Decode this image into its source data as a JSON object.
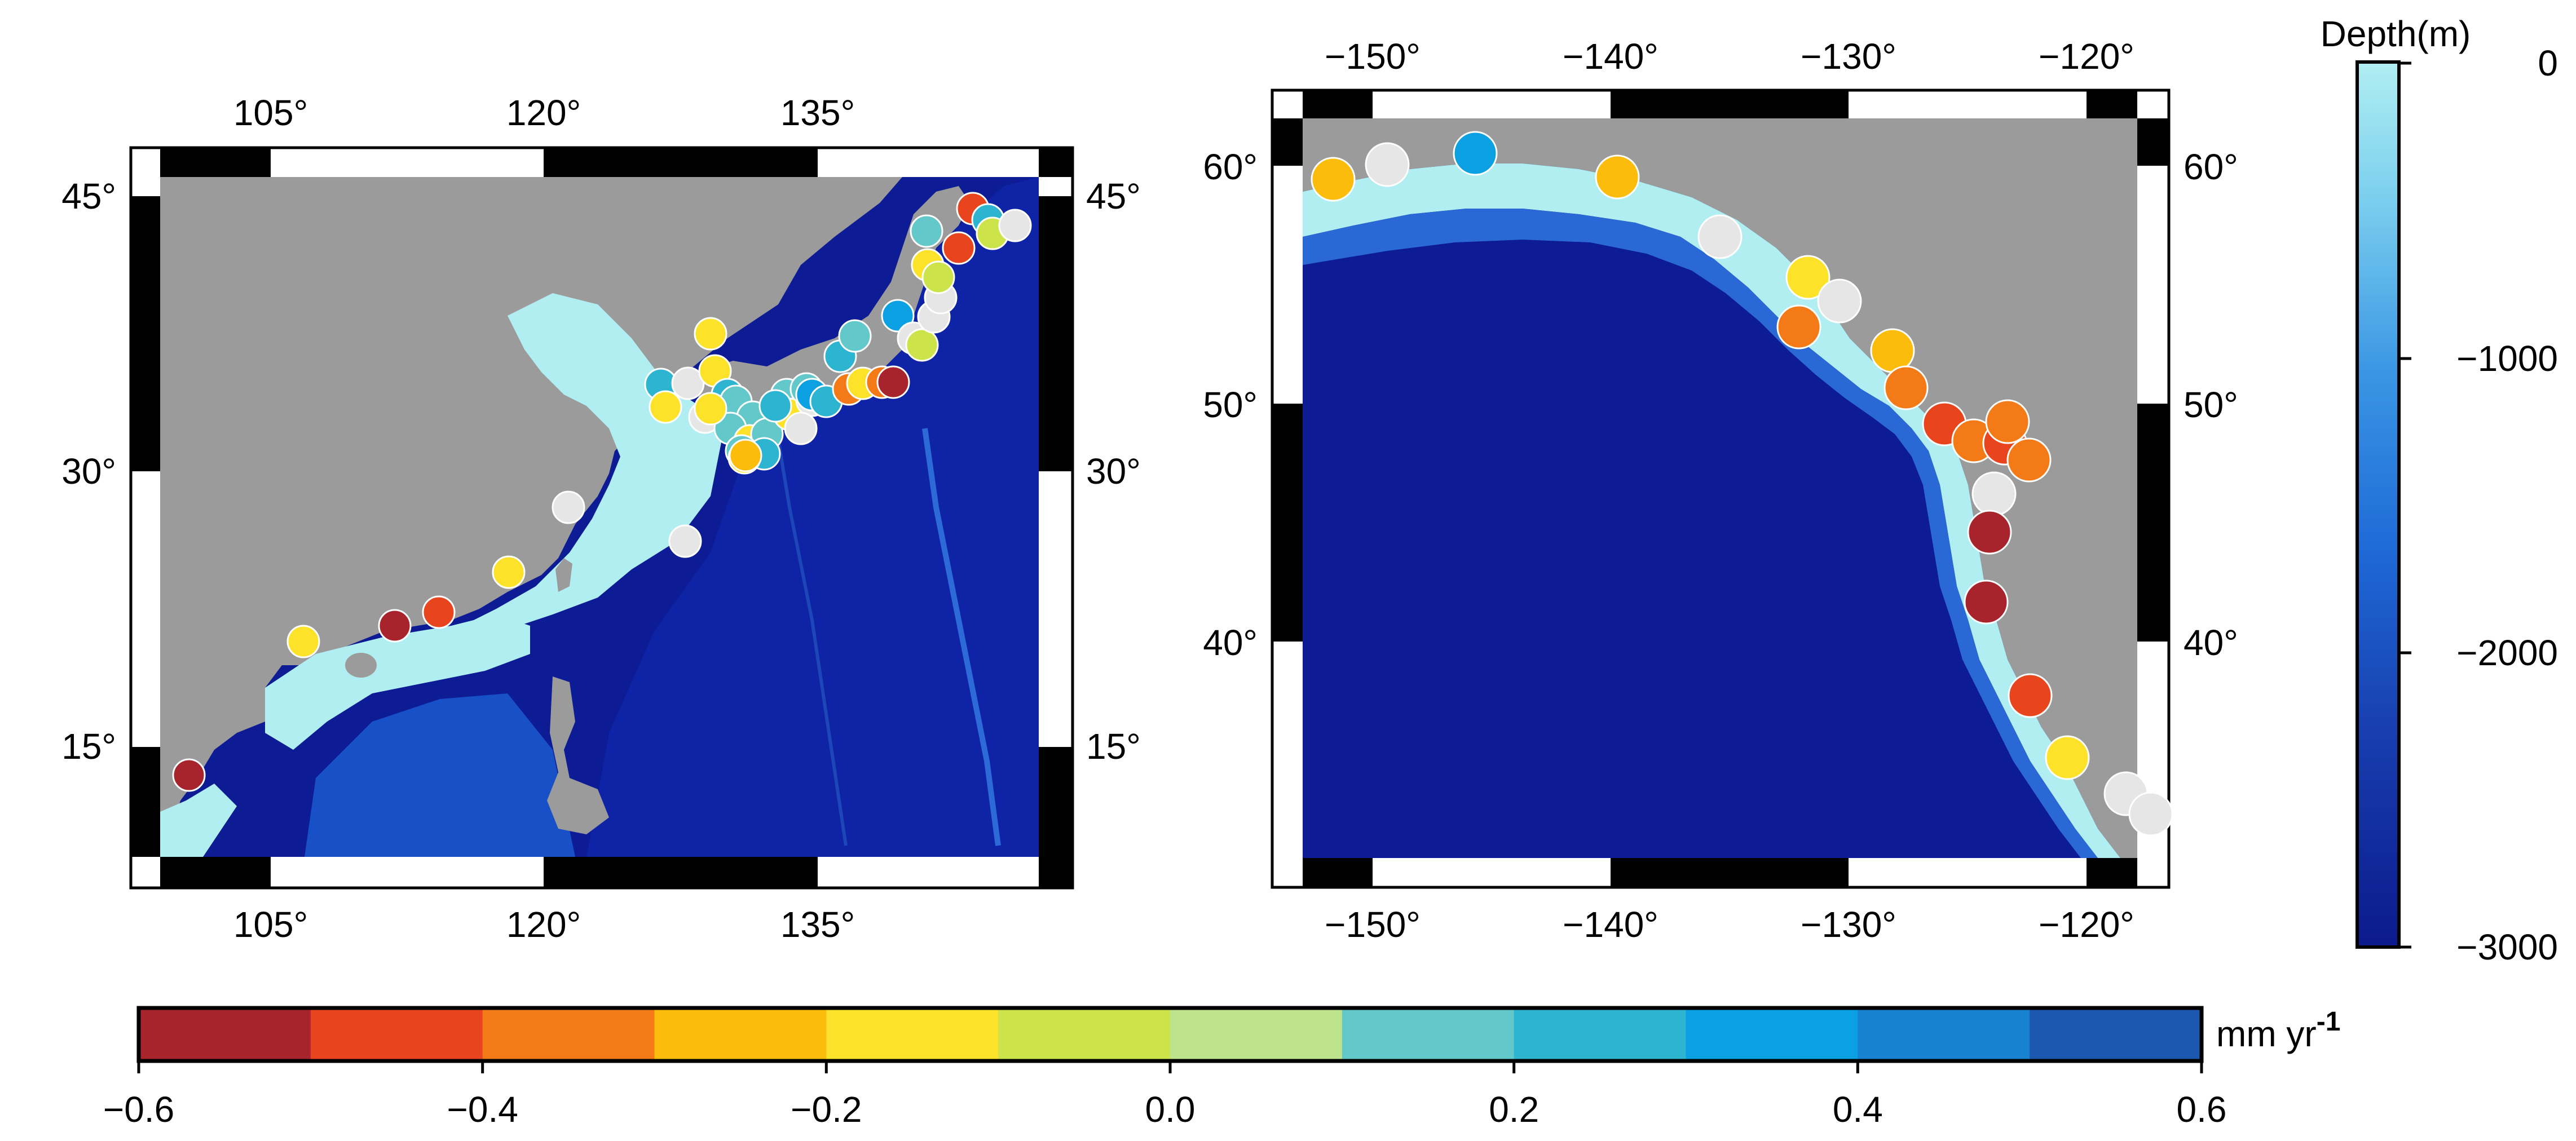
{
  "left_map": {
    "lon_labels": [
      "105°",
      "120°",
      "135°"
    ],
    "lat_labels": [
      "45°",
      "30°",
      "15°"
    ],
    "lon_ticks": [
      105,
      120,
      135
    ],
    "lat_ticks": [
      45,
      30,
      15
    ]
  },
  "right_map": {
    "lon_labels": [
      "−150°",
      "−140°",
      "−130°",
      "−120°"
    ],
    "lat_labels": [
      "60°",
      "50°",
      "40°"
    ],
    "lon_ticks": [
      -150,
      -140,
      -130,
      -120
    ],
    "lat_ticks": [
      60,
      50,
      40
    ]
  },
  "depth_colorbar": {
    "title": "Depth(m)",
    "tick_labels": [
      "0",
      "−1000",
      "−2000",
      "−3000"
    ],
    "range": [
      -3000,
      0
    ],
    "color_shallow": "#b0eef2",
    "color_deep": "#0b1a8c"
  },
  "rate_colorbar": {
    "unit": "mm yr",
    "unit_exponent": "-1",
    "tick_labels": [
      "−0.6",
      "−0.4",
      "−0.2",
      "0.0",
      "0.2",
      "0.4",
      "0.6"
    ],
    "range": [
      -0.6,
      0.6
    ],
    "bin_colors": [
      "#a8242c",
      "#e8441e",
      "#f47a18",
      "#fbbc0c",
      "#fde22a",
      "#cce449",
      "#bde48c",
      "#62c8c9",
      "#2db4d0",
      "#0aa0e2",
      "#1682d0",
      "#1c58b0"
    ]
  },
  "colors": {
    "land": "#9b9b9b",
    "ocean_deep": "#0d1c95",
    "ocean_mid": "#1546c2",
    "shelf": "#b0eef2",
    "no_data": "#e6e6e6",
    "frame": "#000000"
  }
}
